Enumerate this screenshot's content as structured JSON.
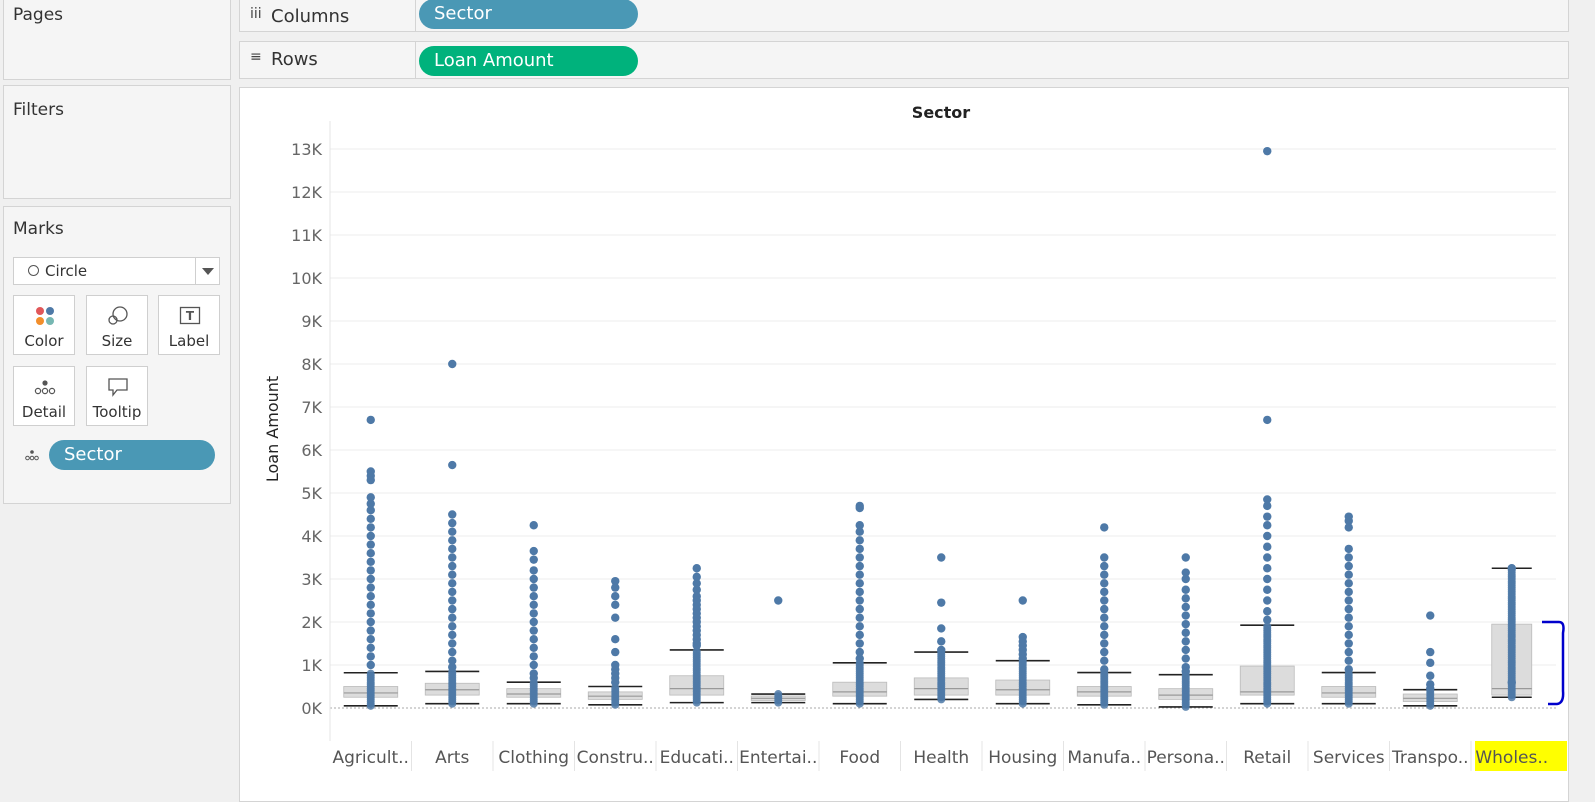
{
  "panels": {
    "pages": {
      "title": "Pages"
    },
    "filters": {
      "title": "Filters"
    },
    "marks": {
      "title": "Marks",
      "mark_type": "Circle",
      "buttons": {
        "color": "Color",
        "size": "Size",
        "label": "Label",
        "detail": "Detail",
        "tooltip": "Tooltip"
      },
      "detail_pill": "Sector"
    }
  },
  "shelves": {
    "columns": {
      "label": "Columns",
      "pill": "Sector",
      "icon": "iii"
    },
    "rows": {
      "label": "Rows",
      "pill": "Loan Amount",
      "icon": "≡"
    }
  },
  "colors": {
    "accent_blue": "#4a98b5",
    "accent_green": "#00b27c",
    "mark": "#4e79a7",
    "highlight": "#ffff00",
    "annotation": "#0000cc"
  },
  "chart_data": {
    "type": "scatter",
    "title": "Sector",
    "ylabel": "Loan Amount",
    "ylim": [
      0,
      13000
    ],
    "yticks": [
      "0K",
      "1K",
      "2K",
      "3K",
      "4K",
      "5K",
      "6K",
      "7K",
      "8K",
      "9K",
      "10K",
      "11K",
      "12K",
      "13K"
    ],
    "categories": [
      "Agricult..",
      "Arts",
      "Clothing",
      "Constru..",
      "Educati..",
      "Entertai..",
      "Food",
      "Health",
      "Housing",
      "Manufa..",
      "Persona..",
      "Retail",
      "Services",
      "Transpo..",
      "Wholes.."
    ],
    "highlighted_category": "Wholes..",
    "boxes": [
      {
        "whisker_low": 50,
        "q1": 250,
        "median": 350,
        "q3": 500,
        "whisker_high": 820
      },
      {
        "whisker_low": 100,
        "q1": 300,
        "median": 425,
        "q3": 575,
        "whisker_high": 850
      },
      {
        "whisker_low": 100,
        "q1": 250,
        "median": 325,
        "q3": 450,
        "whisker_high": 600
      },
      {
        "whisker_low": 75,
        "q1": 200,
        "median": 275,
        "q3": 375,
        "whisker_high": 500
      },
      {
        "whisker_low": 125,
        "q1": 300,
        "median": 450,
        "q3": 750,
        "whisker_high": 1350
      },
      {
        "whisker_low": 125,
        "q1": 175,
        "median": 225,
        "q3": 280,
        "whisker_high": 325
      },
      {
        "whisker_low": 100,
        "q1": 275,
        "median": 375,
        "q3": 600,
        "whisker_high": 1050
      },
      {
        "whisker_low": 200,
        "q1": 300,
        "median": 450,
        "q3": 700,
        "whisker_high": 1300
      },
      {
        "whisker_low": 100,
        "q1": 300,
        "median": 425,
        "q3": 650,
        "whisker_high": 1100
      },
      {
        "whisker_low": 75,
        "q1": 275,
        "median": 375,
        "q3": 500,
        "whisker_high": 825
      },
      {
        "whisker_low": 25,
        "q1": 200,
        "median": 300,
        "q3": 450,
        "whisker_high": 775
      },
      {
        "whisker_low": 100,
        "q1": 300,
        "median": 375,
        "q3": 975,
        "whisker_high": 1925
      },
      {
        "whisker_low": 100,
        "q1": 250,
        "median": 350,
        "q3": 500,
        "whisker_high": 825
      },
      {
        "whisker_low": 50,
        "q1": 150,
        "median": 225,
        "q3": 325,
        "whisker_high": 425
      },
      {
        "whisker_low": 250,
        "q1": 300,
        "median": 450,
        "q3": 1950,
        "whisker_high": 3250
      }
    ],
    "outliers": [
      [
        6700,
        5500,
        5400,
        5300,
        4900,
        4750,
        4600,
        4400,
        4200,
        4000,
        3800,
        3600,
        3400,
        3200,
        3000,
        2800,
        2600,
        2400,
        2200,
        2000,
        1800,
        1600,
        1400,
        1200,
        1000
      ],
      [
        8000,
        5650,
        4500,
        4300,
        4100,
        3900,
        3700,
        3500,
        3300,
        3100,
        2900,
        2700,
        2500,
        2300,
        2100,
        1900,
        1700,
        1500,
        1300,
        1100,
        950
      ],
      [
        4250,
        3650,
        3450,
        3200,
        3000,
        2800,
        2600,
        2400,
        2200,
        2000,
        1800,
        1600,
        1400,
        1200,
        1000,
        800,
        700
      ],
      [
        2950,
        2800,
        2600,
        2400,
        2100,
        1600,
        1300,
        1000,
        900,
        800,
        700,
        600
      ],
      [
        3250,
        3050,
        2900,
        2750,
        2600,
        2500,
        2400,
        2300,
        2200,
        2100,
        2000,
        1900,
        1800,
        1700,
        1600,
        1500,
        1450
      ],
      [
        2500
      ],
      [
        4700,
        4650,
        4250,
        4100,
        3900,
        3700,
        3500,
        3300,
        3100,
        2900,
        2700,
        2500,
        2300,
        2100,
        1900,
        1700,
        1500,
        1300,
        1150
      ],
      [
        3500,
        2450,
        1850,
        1550,
        1350
      ],
      [
        2500,
        1650,
        1550,
        1450,
        1350,
        1250,
        1150
      ],
      [
        4200,
        3500,
        3300,
        3100,
        2900,
        2700,
        2500,
        2300,
        2100,
        1900,
        1700,
        1500,
        1300,
        1100,
        900
      ],
      [
        3500,
        3150,
        3000,
        2750,
        2550,
        2350,
        2150,
        1950,
        1750,
        1550,
        1350,
        1150,
        950,
        850
      ],
      [
        12950,
        6700,
        4850,
        4700,
        4450,
        4250,
        4000,
        3750,
        3500,
        3250,
        3000,
        2750,
        2500,
        2250,
        2050
      ],
      [
        4450,
        4350,
        4200,
        3700,
        3500,
        3300,
        3100,
        2900,
        2700,
        2500,
        2300,
        2100,
        1900,
        1700,
        1500,
        1300,
        1100,
        900
      ],
      [
        2150,
        1300,
        1050,
        750,
        550,
        450
      ],
      [
        3250,
        600
      ]
    ]
  }
}
